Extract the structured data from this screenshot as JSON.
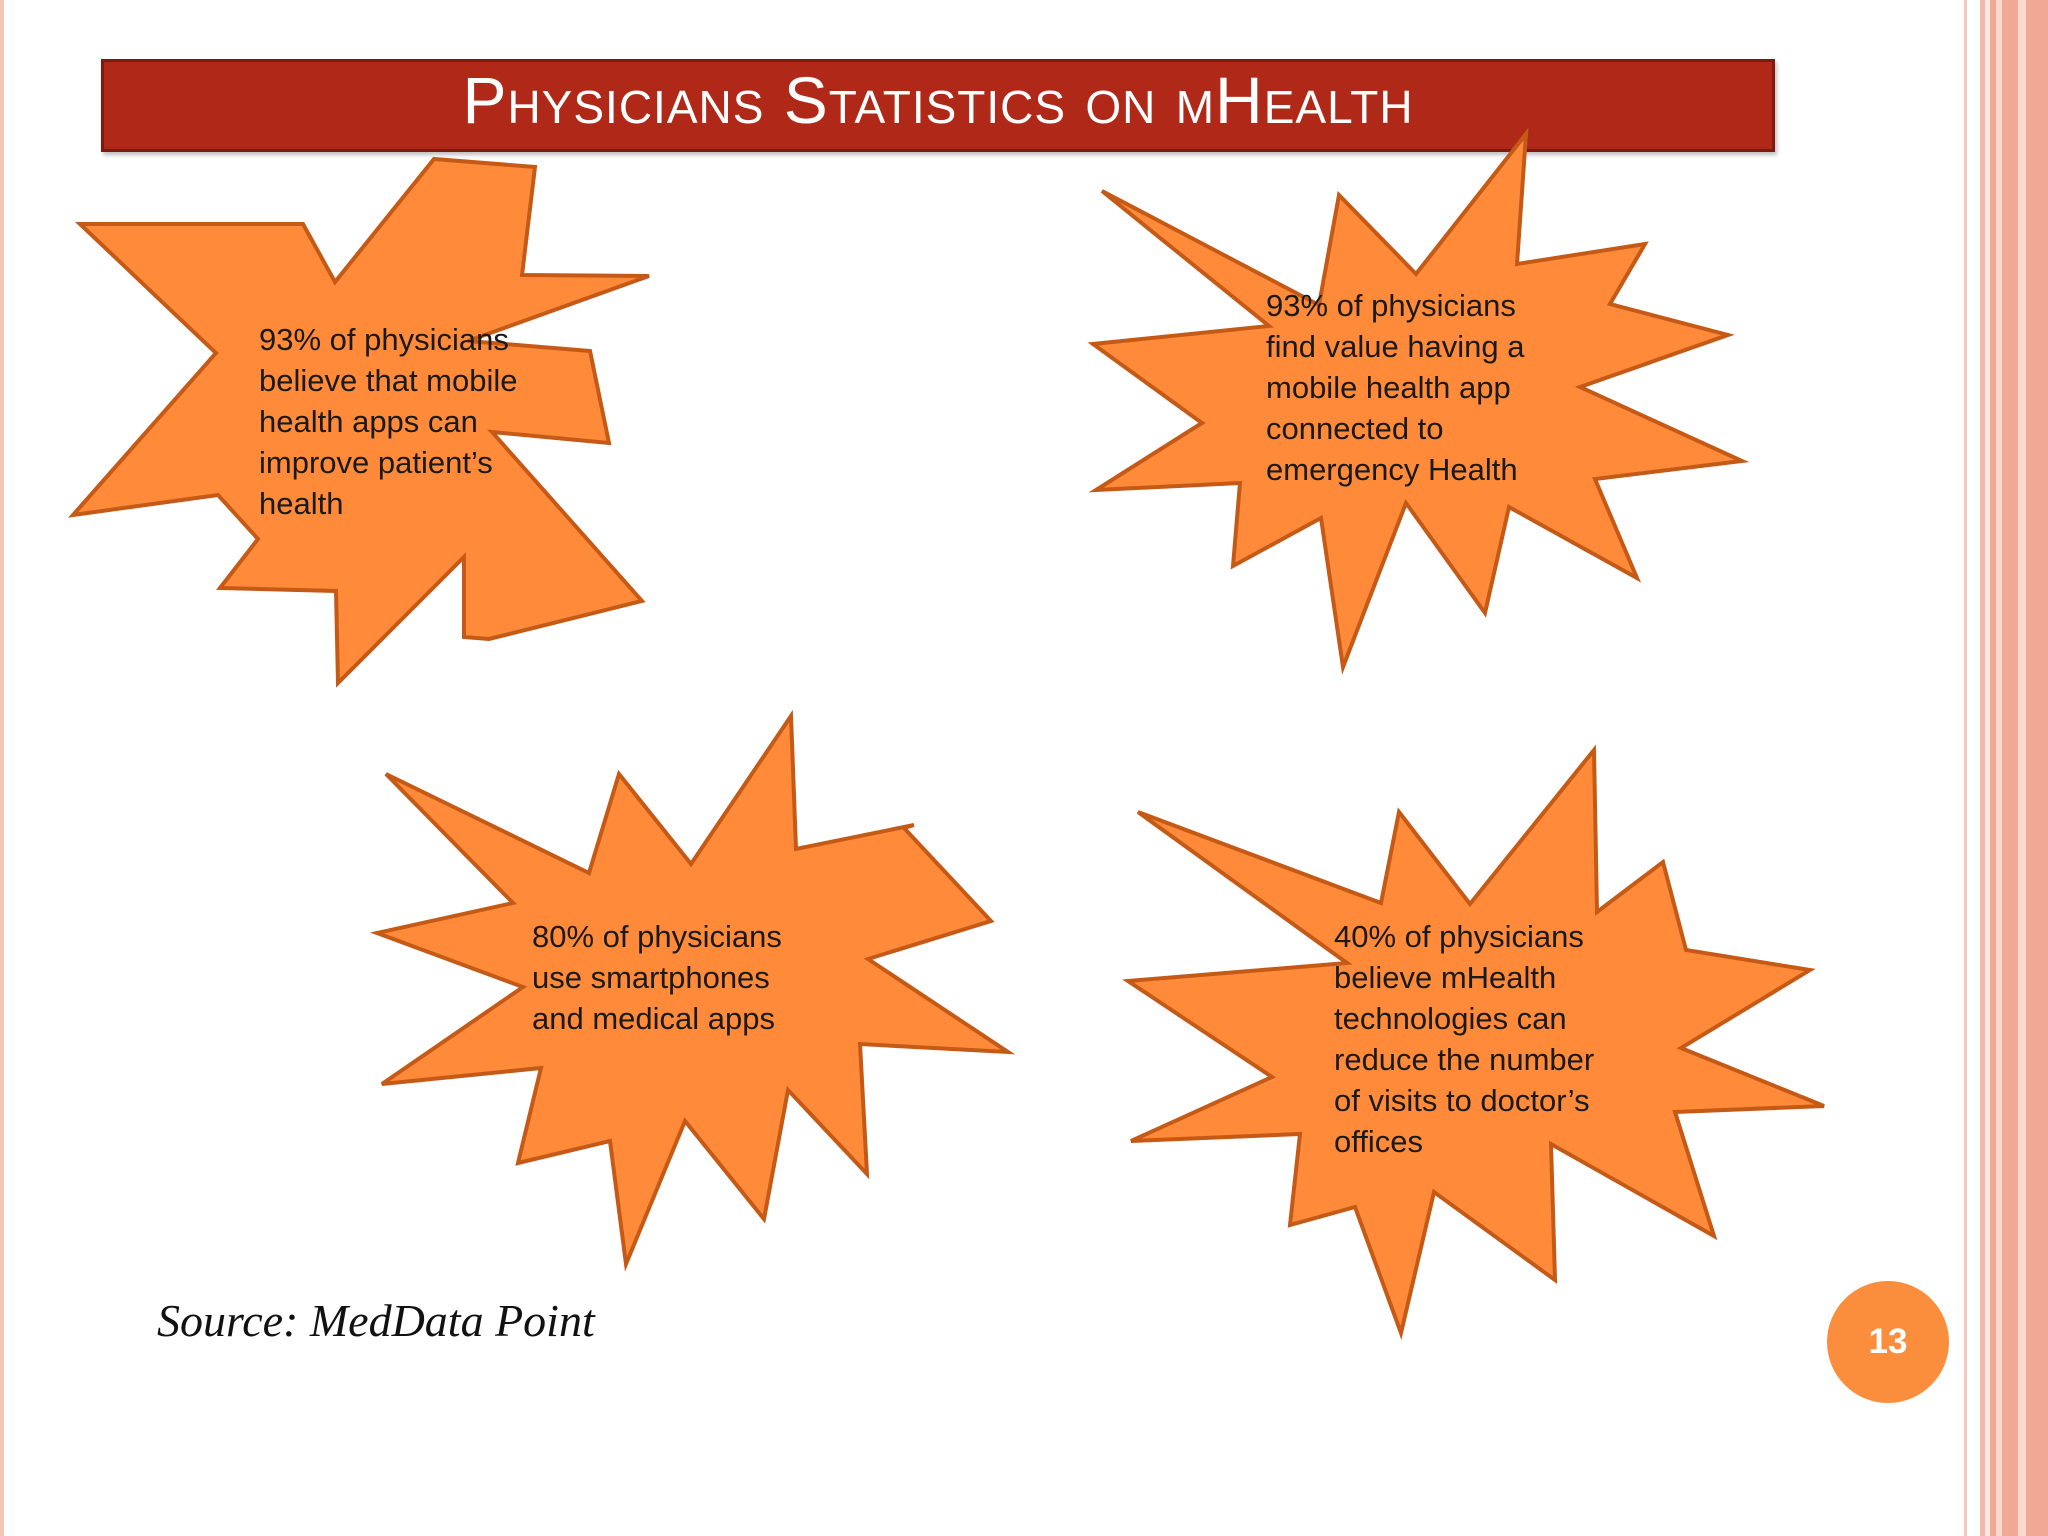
{
  "slide": {
    "title": "Physicians Statistics on mHealth",
    "source": "Source: MedData Point",
    "page_number": "13"
  },
  "stats": [
    {
      "text": "93% of physicians\nbelieve that mobile\nhealth apps can\nimprove patient’s\nhealth"
    },
    {
      "text": "93% of physicians\nfind value having a\nmobile health app\nconnected to\nemergency Health"
    },
    {
      "text": "80% of physicians\nuse smartphones\nand medical apps"
    },
    {
      "text": "40% of physicians\nbelieve mHealth\ntechnologies can\nreduce the number\nof visits to doctor’s\noffices"
    }
  ],
  "colors": {
    "title_bar": "#b02818",
    "burst_fill": "#ff8a3a",
    "burst_outline": "#c55a17",
    "page_badge": "#fb8e3c"
  }
}
